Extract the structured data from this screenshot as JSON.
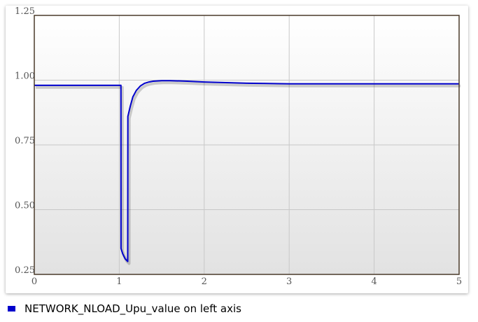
{
  "chart_data": {
    "type": "line",
    "title": "",
    "xlabel": "",
    "ylabel": "",
    "xlim": [
      0,
      5
    ],
    "ylim": [
      0.25,
      1.25
    ],
    "xticks": [
      "0",
      "1",
      "2",
      "3",
      "4",
      "5"
    ],
    "yticks": [
      "0.25",
      "0.50",
      "0.75",
      "1.00",
      "1.25"
    ],
    "grid": true,
    "legend_position": "bottom-left",
    "series": [
      {
        "name": "NETWORK_NLOAD_Upu_value on left axis",
        "color": "#0000cc",
        "points": [
          [
            0,
            0.98
          ],
          [
            1.02,
            0.98
          ],
          [
            1.021,
            0.35
          ],
          [
            1.04,
            0.33
          ],
          [
            1.07,
            0.31
          ],
          [
            1.1,
            0.3
          ],
          [
            1.101,
            0.86
          ],
          [
            1.13,
            0.9
          ],
          [
            1.16,
            0.935
          ],
          [
            1.2,
            0.96
          ],
          [
            1.25,
            0.978
          ],
          [
            1.3,
            0.988
          ],
          [
            1.35,
            0.993
          ],
          [
            1.4,
            0.996
          ],
          [
            1.5,
            0.998
          ],
          [
            1.6,
            0.998
          ],
          [
            1.8,
            0.996
          ],
          [
            2.0,
            0.993
          ],
          [
            2.5,
            0.988
          ],
          [
            3.0,
            0.986
          ],
          [
            4.0,
            0.986
          ],
          [
            5.0,
            0.986
          ]
        ]
      }
    ]
  }
}
